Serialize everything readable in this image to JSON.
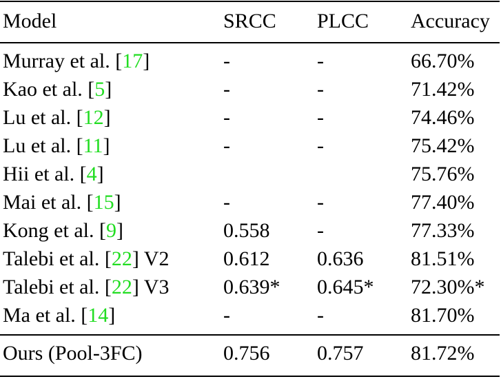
{
  "columns": [
    "Model",
    "SRCC",
    "PLCC",
    "Accuracy"
  ],
  "rows": [
    {
      "name": "Murray et al.",
      "ref": "17",
      "suffix": "",
      "srcc": "-",
      "plcc": "-",
      "acc": "66.70%"
    },
    {
      "name": "Kao et al.",
      "ref": "5",
      "suffix": "",
      "srcc": "-",
      "plcc": "-",
      "acc": "71.42%"
    },
    {
      "name": "Lu et al.",
      "ref": "12",
      "suffix": "",
      "srcc": "-",
      "plcc": "-",
      "acc": "74.46%"
    },
    {
      "name": "Lu et al.",
      "ref": "11",
      "suffix": "",
      "srcc": "-",
      "plcc": "-",
      "acc": "75.42%"
    },
    {
      "name": "Hii et al.",
      "ref": "4",
      "suffix": "",
      "srcc": "",
      "plcc": "",
      "acc": "75.76%"
    },
    {
      "name": "Mai et al.",
      "ref": "15",
      "suffix": "",
      "srcc": "-",
      "plcc": "-",
      "acc": "77.40%"
    },
    {
      "name": "Kong et al.",
      "ref": "9",
      "suffix": "",
      "srcc": "0.558",
      "plcc": "-",
      "acc": "77.33%"
    },
    {
      "name": "Talebi et al.",
      "ref": "22",
      "suffix": " V2",
      "srcc": "0.612",
      "plcc": "0.636",
      "acc": "81.51%"
    },
    {
      "name": "Talebi et al.",
      "ref": "22",
      "suffix": " V3",
      "srcc": "0.639*",
      "plcc": "0.645*",
      "acc": "72.30%*"
    },
    {
      "name": "Ma et al.",
      "ref": "14",
      "suffix": "",
      "srcc": "-",
      "plcc": "-",
      "acc": "81.70%"
    }
  ],
  "ours": {
    "name": "Ours (Pool-3FC)",
    "srcc": "0.756",
    "plcc": "0.757",
    "acc": "81.72%"
  },
  "colors": {
    "citation": "#22dd22",
    "text": "#000000"
  }
}
